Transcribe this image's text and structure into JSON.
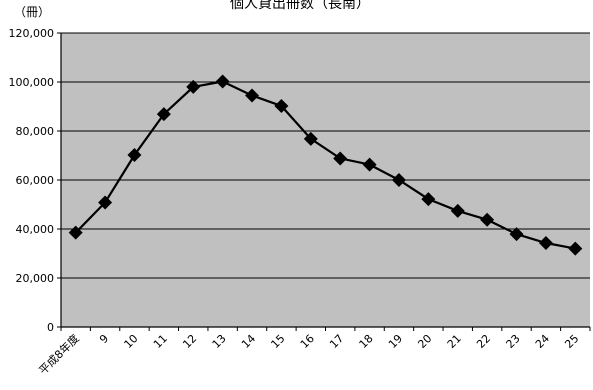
{
  "chart_data": {
    "type": "line",
    "title": "個人貸出冊数（長南）",
    "unit_label": "（冊）",
    "categories": [
      "平成8年度",
      "9",
      "10",
      "11",
      "12",
      "13",
      "14",
      "15",
      "16",
      "17",
      "18",
      "19",
      "20",
      "21",
      "22",
      "23",
      "24",
      "25"
    ],
    "values": [
      38500,
      50800,
      70200,
      86900,
      98000,
      100200,
      94500,
      90200,
      76800,
      68800,
      66300,
      60000,
      52200,
      47400,
      43800,
      37900,
      34300,
      32000
    ],
    "ylim": [
      0,
      120000
    ],
    "yticks": [
      0,
      20000,
      40000,
      60000,
      80000,
      100000,
      120000
    ],
    "ytick_labels": [
      "0",
      "20,000",
      "40,000",
      "60,000",
      "80,000",
      "100,000",
      "120,000"
    ],
    "grid": true,
    "plot_background": "#c0c0c0",
    "line_color": "#000000",
    "marker": "diamond"
  }
}
